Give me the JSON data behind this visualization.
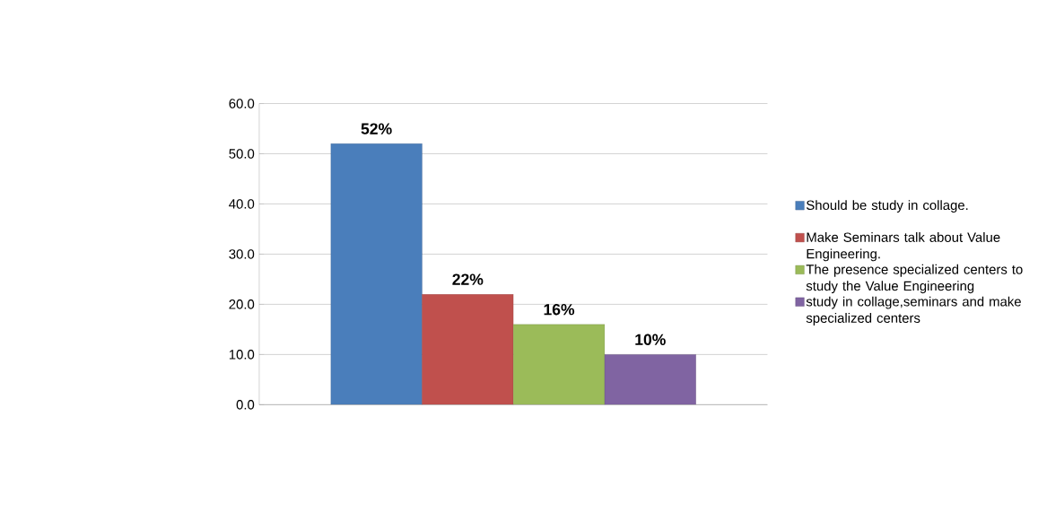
{
  "chart_data": {
    "type": "bar",
    "categories": [
      null
    ],
    "series": [
      {
        "name": "Should be study in collage.",
        "color": "#4a7ebb",
        "values": [
          52
        ],
        "value_labels": [
          "52%"
        ]
      },
      {
        "name": "Make Seminars talk about Value Engineering.",
        "color": "#c0504d",
        "values": [
          22
        ],
        "value_labels": [
          "22%"
        ]
      },
      {
        "name": "The presence specialized centers to study the Value Engineering",
        "color": "#9bbb59",
        "values": [
          16
        ],
        "value_labels": [
          "16%"
        ]
      },
      {
        "name": "study in collage,seminars and make specialized centers",
        "color": "#8064a2",
        "values": [
          10
        ],
        "value_labels": [
          "10%"
        ]
      }
    ],
    "ylim": [
      0,
      60
    ],
    "yticks": [
      {
        "value": 0,
        "label": "0.0"
      },
      {
        "value": 10,
        "label": "10.0"
      },
      {
        "value": 20,
        "label": "20.0"
      },
      {
        "value": 30,
        "label": "30.0"
      },
      {
        "value": 40,
        "label": "40.0"
      },
      {
        "value": 50,
        "label": "50.0"
      },
      {
        "value": 60,
        "label": "60.0"
      }
    ],
    "grid": "y",
    "legend": "right"
  }
}
